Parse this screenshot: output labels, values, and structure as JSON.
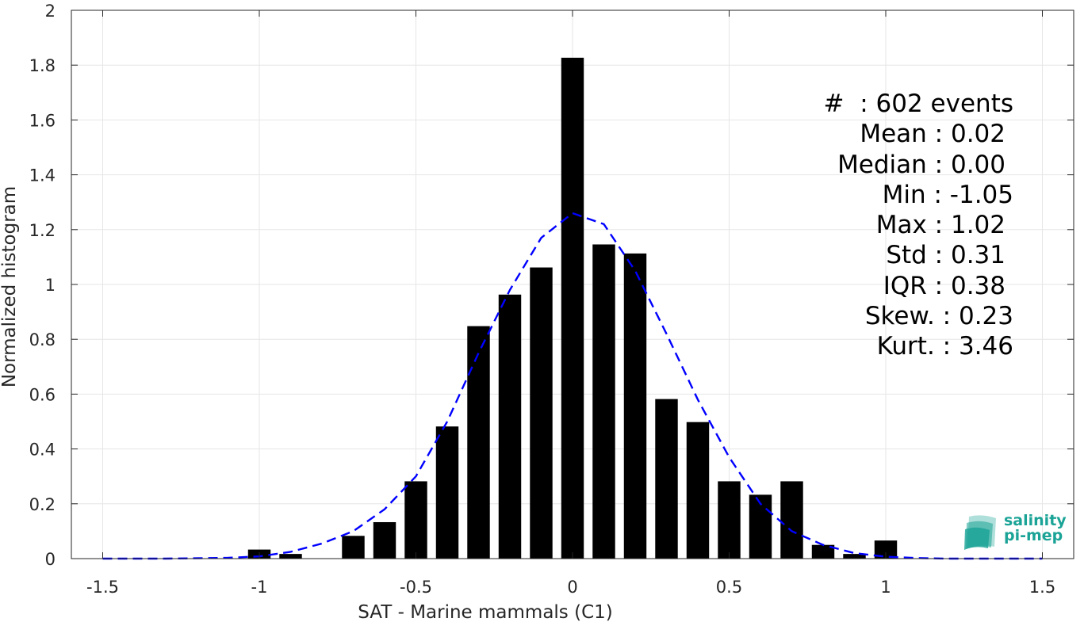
{
  "chart_data": {
    "type": "bar",
    "xlabel": "SAT - Marine mammals (C1)",
    "ylabel": "Normalized histogram",
    "xlim": [
      -1.6,
      1.6
    ],
    "ylim": [
      0,
      2
    ],
    "xticks": [
      -1.5,
      -1,
      -0.5,
      0,
      0.5,
      1,
      1.5
    ],
    "xtick_labels": [
      "-1.5",
      "-1",
      "-0.5",
      "0",
      "0.5",
      "1",
      "1.5"
    ],
    "yticks": [
      0,
      0.2,
      0.4,
      0.6,
      0.8,
      1,
      1.2,
      1.4,
      1.6,
      1.8,
      2
    ],
    "ytick_labels": [
      "0",
      "0.2",
      "0.4",
      "0.6",
      "0.8",
      "1",
      "1.2",
      "1.4",
      "1.6",
      "1.8",
      "2"
    ],
    "grid": true,
    "bar_width": 0.072,
    "bars": {
      "x": [
        -1.0,
        -0.9,
        -0.7,
        -0.6,
        -0.5,
        -0.4,
        -0.3,
        -0.2,
        -0.1,
        0.0,
        0.1,
        0.2,
        0.3,
        0.4,
        0.5,
        0.6,
        0.7,
        0.8,
        0.9,
        1.0
      ],
      "values": [
        0.033,
        0.017,
        0.083,
        0.133,
        0.282,
        0.482,
        0.848,
        0.963,
        1.062,
        1.827,
        1.146,
        1.113,
        0.582,
        0.498,
        0.282,
        0.233,
        0.282,
        0.05,
        0.017,
        0.066
      ],
      "color": "#000000"
    },
    "fit_curve": {
      "style": "dashed",
      "color": "#0000ff",
      "x": [
        -1.5,
        -1.3,
        -1.1,
        -1.0,
        -0.9,
        -0.8,
        -0.7,
        -0.6,
        -0.5,
        -0.4,
        -0.3,
        -0.2,
        -0.1,
        0.0,
        0.1,
        0.2,
        0.3,
        0.4,
        0.5,
        0.6,
        0.7,
        0.8,
        0.9,
        1.0,
        1.1,
        1.2,
        1.3,
        1.5
      ],
      "y": [
        0.0,
        0.0,
        0.003,
        0.008,
        0.025,
        0.055,
        0.1,
        0.18,
        0.3,
        0.5,
        0.75,
        0.98,
        1.17,
        1.26,
        1.22,
        1.05,
        0.82,
        0.58,
        0.37,
        0.2,
        0.1,
        0.05,
        0.02,
        0.007,
        0.002,
        0.0,
        0.0,
        0.0
      ]
    }
  },
  "stats": {
    "events": "#  : 602 events",
    "mean": "Mean : 0.02",
    "median": "Median : 0.00",
    "min": "Min : -1.05",
    "max": "Max : 1.02",
    "std": "Std : 0.31",
    "iqr": "IQR : 0.38",
    "skew": "Skew. : 0.23",
    "kurt": "Kurt. : 3.46"
  },
  "logo": {
    "line1": "salinity",
    "line2": "pi-mep",
    "color": "#1aa396"
  }
}
